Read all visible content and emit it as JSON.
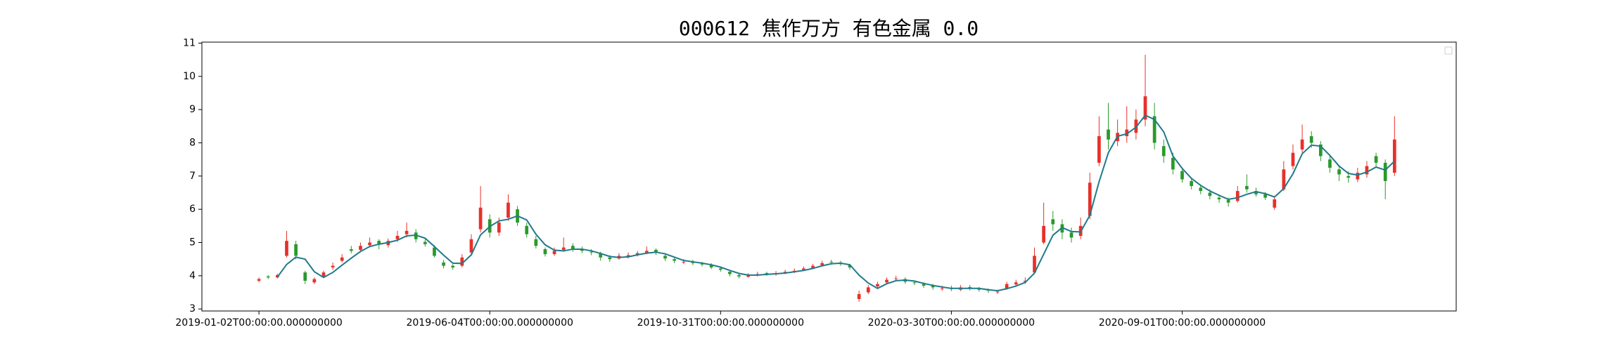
{
  "chart_data": {
    "type": "candlestick",
    "title": "000612 焦作万方 有色金属 0.0",
    "up_color": "#e8302a",
    "down_color": "#2a9a2a",
    "ma_color": "#1f7a8c",
    "xlim": [
      -6.18,
      129.68
    ],
    "xticks": [
      {
        "value": 0,
        "label": "2019-01-02T00:00:00.000000000"
      },
      {
        "value": 25,
        "label": "2019-06-04T00:00:00.000000000"
      },
      {
        "value": 50,
        "label": "2019-10-31T00:00:00.000000000"
      },
      {
        "value": 75,
        "label": "2020-03-30T00:00:00.000000000"
      },
      {
        "value": 100,
        "label": "2020-09-01T00:00:00.000000000"
      }
    ],
    "ylim": [
      2.94,
      11.03
    ],
    "yticks": [
      3,
      4,
      5,
      6,
      7,
      8,
      9,
      10,
      11
    ],
    "open": [
      3.85,
      3.98,
      3.95,
      4.6,
      4.95,
      4.1,
      3.8,
      3.98,
      4.25,
      4.45,
      4.8,
      4.78,
      4.92,
      5.05,
      4.92,
      5.1,
      5.25,
      5.3,
      5.02,
      4.85,
      4.4,
      4.3,
      4.3,
      4.7,
      5.4,
      5.7,
      5.3,
      5.75,
      6.0,
      5.5,
      5.1,
      4.8,
      4.65,
      4.78,
      4.9,
      4.8,
      4.72,
      4.68,
      4.55,
      4.52,
      4.58,
      4.62,
      4.7,
      4.78,
      4.6,
      4.5,
      4.4,
      4.42,
      4.36,
      4.32,
      4.22,
      4.12,
      4.02,
      3.97,
      4.03,
      4.08,
      4.04,
      4.1,
      4.12,
      4.18,
      4.24,
      4.32,
      4.42,
      4.4,
      4.32,
      3.3,
      3.5,
      3.68,
      3.8,
      3.9,
      3.9,
      3.8,
      3.75,
      3.7,
      3.6,
      3.64,
      3.58,
      3.66,
      3.62,
      3.58,
      3.5,
      3.62,
      3.74,
      3.82,
      4.1,
      5.0,
      5.7,
      5.55,
      5.3,
      5.2,
      5.8,
      7.4,
      8.4,
      8.05,
      8.2,
      8.3,
      8.7,
      8.8,
      7.9,
      7.55,
      7.15,
      6.85,
      6.65,
      6.5,
      6.35,
      6.28,
      6.25,
      6.7,
      6.55,
      6.45,
      6.05,
      6.6,
      7.3,
      7.8,
      8.2,
      7.95,
      7.5,
      7.2,
      7.0,
      6.9,
      7.05,
      7.6,
      7.4,
      7.1
    ],
    "high": [
      3.95,
      4.02,
      4.06,
      5.35,
      5.05,
      4.15,
      3.95,
      4.15,
      4.4,
      4.65,
      4.9,
      5.0,
      5.15,
      5.1,
      5.12,
      5.35,
      5.6,
      5.4,
      5.1,
      4.92,
      4.48,
      4.35,
      4.65,
      5.25,
      6.7,
      5.85,
      5.75,
      6.45,
      6.1,
      5.6,
      5.2,
      4.85,
      4.85,
      5.15,
      4.98,
      4.88,
      4.8,
      4.72,
      4.62,
      4.68,
      4.7,
      4.75,
      4.88,
      4.82,
      4.66,
      4.55,
      4.5,
      4.48,
      4.42,
      4.38,
      4.28,
      4.16,
      4.06,
      4.08,
      4.12,
      4.12,
      4.14,
      4.18,
      4.22,
      4.28,
      4.36,
      4.45,
      4.48,
      4.45,
      4.36,
      3.55,
      3.72,
      3.82,
      3.95,
      4.0,
      3.95,
      3.86,
      3.8,
      3.75,
      3.7,
      3.7,
      3.72,
      3.72,
      3.66,
      3.62,
      3.58,
      3.82,
      3.88,
      3.95,
      4.85,
      6.2,
      5.95,
      5.7,
      5.45,
      5.75,
      7.1,
      8.8,
      9.2,
      8.7,
      9.1,
      9.0,
      10.65,
      9.2,
      8.1,
      7.7,
      7.25,
      6.95,
      6.75,
      6.6,
      6.45,
      6.35,
      6.7,
      7.05,
      6.65,
      6.52,
      6.4,
      7.45,
      7.95,
      8.55,
      8.35,
      8.05,
      7.6,
      7.3,
      7.15,
      7.25,
      7.45,
      7.7,
      7.5,
      8.8
    ],
    "low": [
      3.8,
      3.9,
      3.92,
      4.55,
      4.5,
      3.75,
      3.75,
      3.95,
      4.18,
      4.4,
      4.68,
      4.72,
      4.85,
      4.8,
      4.85,
      5.02,
      5.15,
      5.0,
      4.88,
      4.55,
      4.22,
      4.18,
      4.25,
      4.62,
      5.3,
      5.15,
      5.2,
      5.65,
      5.5,
      5.15,
      4.82,
      4.58,
      4.6,
      4.72,
      4.72,
      4.68,
      4.62,
      4.45,
      4.42,
      4.48,
      4.52,
      4.58,
      4.65,
      4.62,
      4.45,
      4.38,
      4.35,
      4.32,
      4.28,
      4.2,
      4.12,
      3.98,
      3.92,
      3.94,
      3.98,
      4.0,
      4.0,
      4.05,
      4.08,
      4.14,
      4.2,
      4.28,
      4.34,
      4.3,
      4.18,
      3.22,
      3.45,
      3.62,
      3.75,
      3.84,
      3.76,
      3.72,
      3.64,
      3.58,
      3.55,
      3.54,
      3.54,
      3.56,
      3.52,
      3.48,
      3.45,
      3.58,
      3.7,
      3.76,
      4.05,
      4.95,
      5.35,
      5.1,
      5.0,
      5.1,
      5.7,
      7.3,
      7.8,
      7.9,
      8.0,
      8.1,
      8.5,
      7.8,
      7.4,
      7.05,
      6.8,
      6.6,
      6.45,
      6.3,
      6.2,
      6.08,
      6.2,
      6.5,
      6.38,
      6.28,
      5.98,
      6.55,
      7.2,
      7.7,
      7.85,
      7.45,
      7.1,
      6.85,
      6.8,
      6.82,
      6.95,
      7.25,
      6.3,
      7.0
    ],
    "close": [
      3.9,
      3.95,
      4.02,
      5.05,
      4.6,
      3.85,
      3.9,
      4.1,
      4.3,
      4.55,
      4.75,
      4.9,
      5.0,
      4.95,
      5.05,
      5.2,
      5.35,
      5.1,
      4.95,
      4.6,
      4.3,
      4.25,
      4.55,
      5.1,
      6.05,
      5.3,
      5.6,
      6.2,
      5.6,
      5.25,
      4.9,
      4.65,
      4.75,
      4.85,
      4.8,
      4.75,
      4.7,
      4.55,
      4.5,
      4.6,
      4.62,
      4.68,
      4.75,
      4.7,
      4.52,
      4.45,
      4.42,
      4.38,
      4.35,
      4.25,
      4.18,
      4.05,
      3.98,
      4.02,
      4.05,
      4.05,
      4.08,
      4.12,
      4.15,
      4.22,
      4.3,
      4.38,
      4.4,
      4.35,
      4.25,
      3.45,
      3.65,
      3.75,
      3.88,
      3.92,
      3.82,
      3.78,
      3.7,
      3.65,
      3.62,
      3.6,
      3.65,
      3.62,
      3.58,
      3.55,
      3.52,
      3.75,
      3.8,
      3.85,
      4.6,
      5.5,
      5.55,
      5.3,
      5.15,
      5.5,
      6.8,
      8.2,
      8.1,
      8.3,
      8.4,
      8.7,
      9.4,
      8.0,
      7.6,
      7.2,
      6.9,
      6.7,
      6.55,
      6.4,
      6.3,
      6.2,
      6.55,
      6.6,
      6.45,
      6.35,
      6.3,
      7.2,
      7.7,
      8.1,
      8.0,
      7.6,
      7.25,
      7.05,
      6.95,
      7.1,
      7.3,
      7.4,
      6.85,
      8.1
    ],
    "moving_average": [
      null,
      null,
      3.96,
      4.34,
      4.56,
      4.5,
      4.12,
      3.95,
      4.1,
      4.32,
      4.53,
      4.73,
      4.88,
      4.95,
      5.0,
      5.07,
      5.2,
      5.22,
      5.13,
      4.88,
      4.62,
      4.38,
      4.37,
      4.63,
      5.23,
      5.48,
      5.65,
      5.7,
      5.8,
      5.68,
      5.25,
      4.93,
      4.77,
      4.75,
      4.8,
      4.8,
      4.75,
      4.67,
      4.58,
      4.55,
      4.57,
      4.63,
      4.68,
      4.71,
      4.66,
      4.56,
      4.46,
      4.42,
      4.38,
      4.33,
      4.26,
      4.16,
      4.07,
      4.02,
      4.02,
      4.04,
      4.06,
      4.08,
      4.12,
      4.16,
      4.22,
      4.3,
      4.36,
      4.38,
      4.33,
      4.02,
      3.78,
      3.62,
      3.76,
      3.85,
      3.87,
      3.84,
      3.77,
      3.71,
      3.66,
      3.62,
      3.62,
      3.62,
      3.62,
      3.58,
      3.55,
      3.61,
      3.69,
      3.8,
      4.08,
      4.65,
      5.22,
      5.45,
      5.33,
      5.32,
      5.82,
      6.83,
      7.7,
      8.2,
      8.27,
      8.47,
      8.83,
      8.7,
      8.33,
      7.6,
      7.23,
      6.93,
      6.72,
      6.55,
      6.42,
      6.3,
      6.35,
      6.45,
      6.53,
      6.47,
      6.37,
      6.62,
      7.07,
      7.67,
      7.93,
      7.9,
      7.62,
      7.3,
      7.08,
      7.03,
      7.12,
      7.27,
      7.18,
      7.45
    ]
  }
}
